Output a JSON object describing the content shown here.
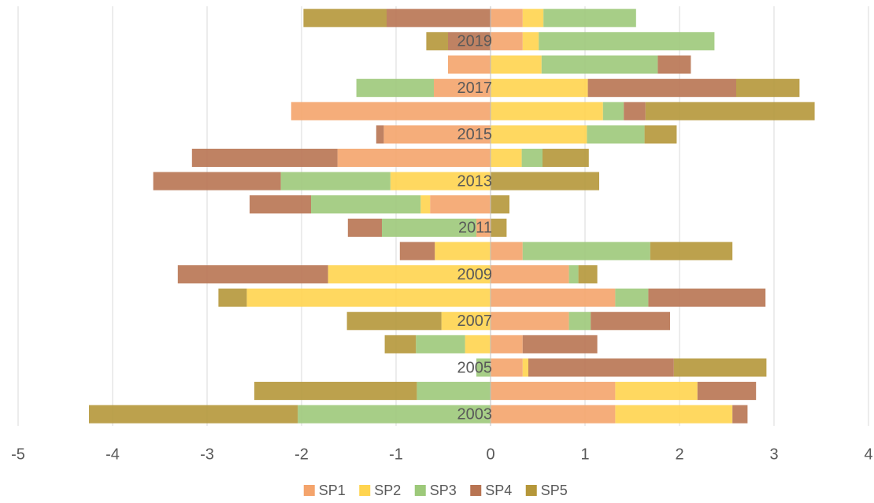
{
  "chart_data": {
    "type": "bar",
    "orientation": "horizontal",
    "stacked": true,
    "categories": [
      "2003",
      null,
      "2005",
      null,
      "2007",
      null,
      "2009",
      null,
      "2011",
      null,
      "2013",
      null,
      "2015",
      null,
      "2017",
      null,
      "2019",
      null
    ],
    "series": [
      {
        "name": "SP1",
        "color": "#f4a46c",
        "values": [
          1.32,
          1.32,
          0.34,
          0.34,
          0.83,
          1.32,
          0.83,
          0.34,
          -0.15,
          -0.64,
          0,
          -1.62,
          -1.13,
          -2.11,
          -0.6,
          -0.45,
          0.34,
          0.34
        ]
      },
      {
        "name": "SP2",
        "color": "#ffd44f",
        "values": [
          1.24,
          0.87,
          0.06,
          -0.27,
          -0.52,
          -2.58,
          -1.72,
          -0.59,
          0,
          -0.1,
          -1.06,
          0.33,
          1.02,
          1.19,
          1.03,
          0.54,
          0.17,
          0.22
        ]
      },
      {
        "name": "SP3",
        "color": "#9dc97a",
        "values": [
          -2.04,
          -0.78,
          -0.15,
          -0.52,
          0.23,
          0.35,
          0.1,
          1.35,
          -1.0,
          -1.16,
          -1.16,
          0.22,
          0.61,
          0.22,
          -0.82,
          1.23,
          1.86,
          0.98
        ]
      },
      {
        "name": "SP4",
        "color": "#b87452",
        "values": [
          0.16,
          0.62,
          1.54,
          0.79,
          0.84,
          1.24,
          -1.59,
          -0.37,
          -0.36,
          -0.65,
          -1.35,
          -1.54,
          -0.08,
          0.23,
          1.57,
          0.35,
          -0.45,
          -1.1
        ]
      },
      {
        "name": "SP5",
        "color": "#b5973a",
        "values": [
          -2.21,
          -1.72,
          0.98,
          -0.33,
          -1.0,
          -0.3,
          0.2,
          0.87,
          0.17,
          0.2,
          1.15,
          0.49,
          0.34,
          1.79,
          0.67,
          0,
          -0.23,
          -0.88
        ]
      }
    ],
    "xlim": [
      -5,
      4
    ],
    "xticks": [
      -5,
      -4,
      -3,
      -2,
      -1,
      0,
      1,
      2,
      3,
      4
    ],
    "grid": true,
    "legend": "bottom"
  }
}
